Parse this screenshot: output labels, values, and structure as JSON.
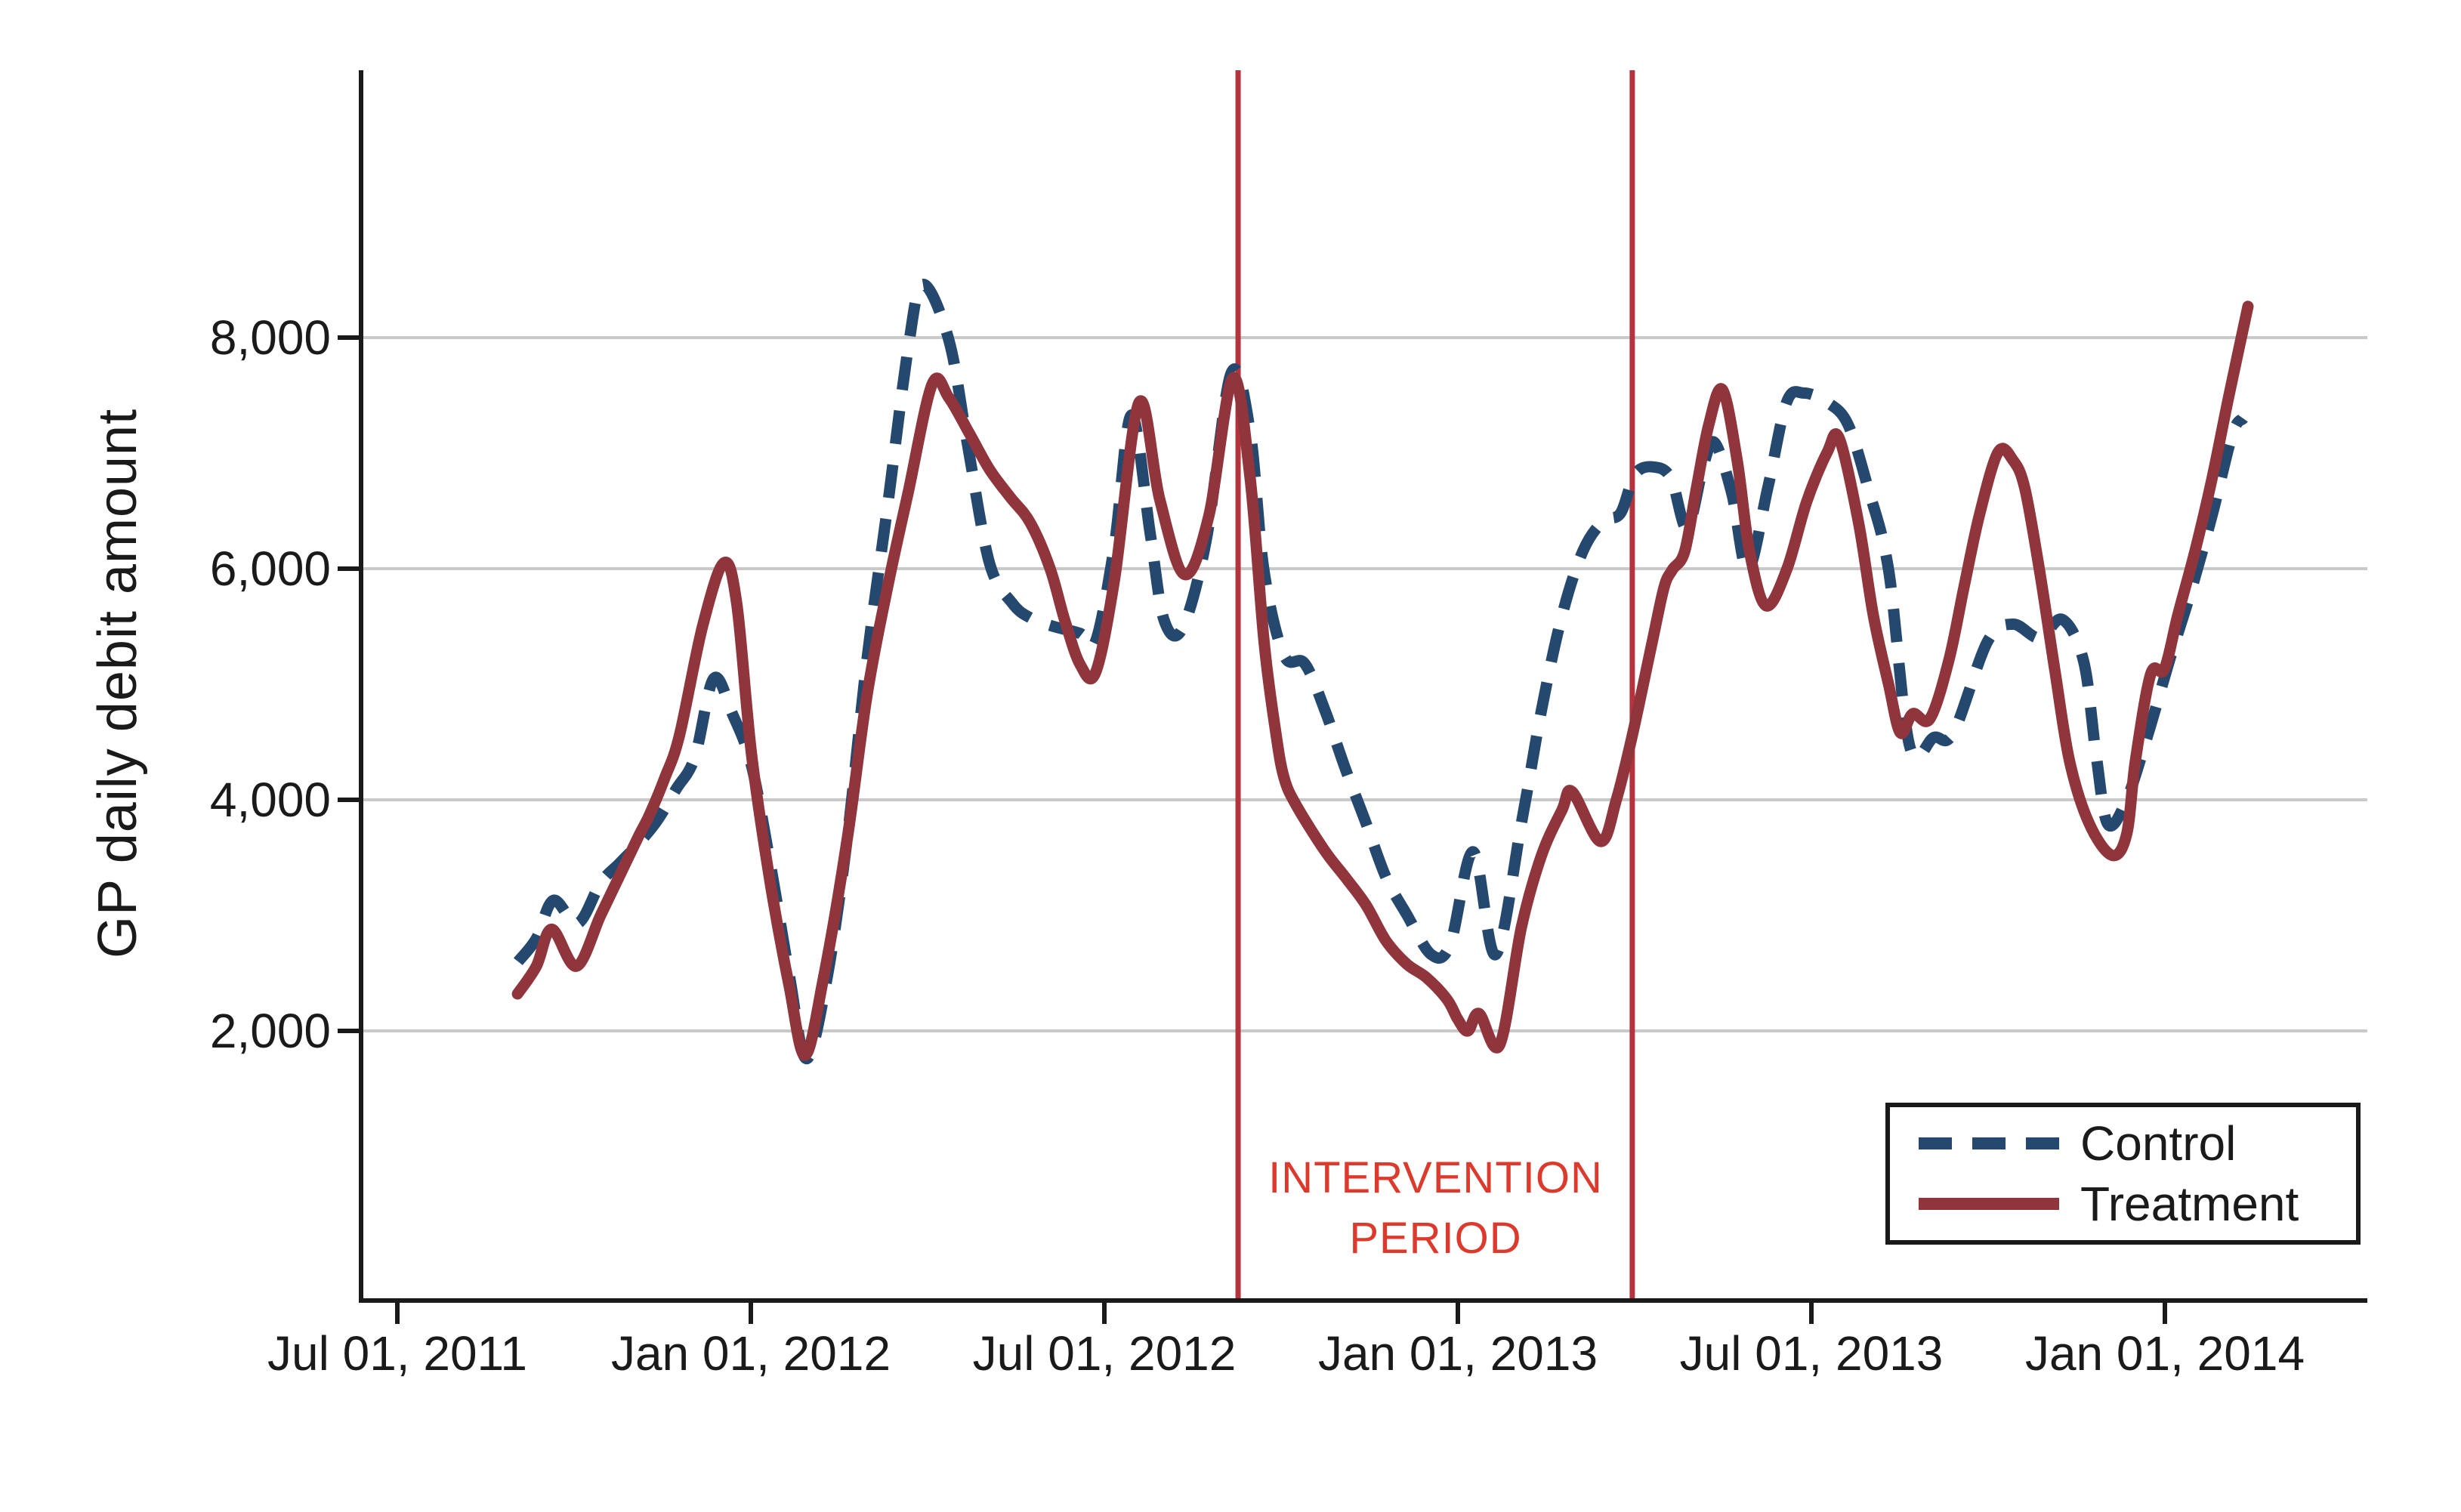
{
  "chart_data": {
    "type": "line",
    "title": "",
    "xlabel": "",
    "ylabel": "GP daily debit amount",
    "grid": true,
    "legend_position": "bottom-right",
    "x_unit": "months since Jul 01, 2011",
    "x_ticks": [
      {
        "t": 0,
        "label": "Jul 01, 2011"
      },
      {
        "t": 6,
        "label": "Jan 01, 2012"
      },
      {
        "t": 12,
        "label": "Jul 01, 2012"
      },
      {
        "t": 18,
        "label": "Jan 01, 2013"
      },
      {
        "t": 24,
        "label": "Jul 01, 2013"
      },
      {
        "t": 30,
        "label": "Jan 01, 2014"
      }
    ],
    "y_ticks": [
      {
        "v": 2000,
        "label": "2,000"
      },
      {
        "v": 4000,
        "label": "4,000"
      },
      {
        "v": 6000,
        "label": "6,000"
      },
      {
        "v": 8000,
        "label": "8,000"
      }
    ],
    "ylim_visible": [
      -330,
      10310
    ],
    "annotation": {
      "line1": "INTERVENTION",
      "line2": "PERIOD",
      "color": "#db3a2d"
    },
    "intervention_lines": {
      "color": "#b4333d",
      "t_values": [
        14.27,
        20.96
      ]
    },
    "colors": {
      "axis": "#1a1a1a",
      "grid": "#c9c9c9",
      "control": "#25496e",
      "treatment": "#90353b"
    },
    "series": [
      {
        "name": "Control",
        "dash": true,
        "color": "#25496e",
        "points": [
          [
            2.05,
            2600
          ],
          [
            2.36,
            2800
          ],
          [
            2.65,
            3130
          ],
          [
            3.06,
            2930
          ],
          [
            3.45,
            3280
          ],
          [
            3.77,
            3450
          ],
          [
            4.09,
            3620
          ],
          [
            4.41,
            3820
          ],
          [
            4.73,
            4090
          ],
          [
            5.05,
            4370
          ],
          [
            5.37,
            5050
          ],
          [
            5.69,
            4740
          ],
          [
            6.01,
            4300
          ],
          [
            6.33,
            3450
          ],
          [
            6.65,
            2490
          ],
          [
            6.94,
            1760
          ],
          [
            7.28,
            2420
          ],
          [
            7.63,
            3640
          ],
          [
            7.97,
            5210
          ],
          [
            8.32,
            6540
          ],
          [
            8.67,
            7910
          ],
          [
            8.92,
            8460
          ],
          [
            9.36,
            7980
          ],
          [
            9.68,
            7070
          ],
          [
            10.05,
            6050
          ],
          [
            10.44,
            5700
          ],
          [
            10.76,
            5570
          ],
          [
            11.14,
            5500
          ],
          [
            11.59,
            5440
          ],
          [
            11.85,
            5370
          ],
          [
            12.17,
            6200
          ],
          [
            12.46,
            7330
          ],
          [
            12.78,
            6300
          ],
          [
            13.01,
            5560
          ],
          [
            13.32,
            5480
          ],
          [
            13.73,
            6250
          ],
          [
            14.15,
            7690
          ],
          [
            14.47,
            7200
          ],
          [
            14.71,
            5980
          ],
          [
            15.05,
            5250
          ],
          [
            15.4,
            5180
          ],
          [
            15.74,
            4780
          ],
          [
            16.09,
            4270
          ],
          [
            16.44,
            3800
          ],
          [
            16.78,
            3330
          ],
          [
            17.13,
            3010
          ],
          [
            17.55,
            2660
          ],
          [
            17.87,
            2750
          ],
          [
            18.26,
            3550
          ],
          [
            18.64,
            2660
          ],
          [
            19.08,
            3800
          ],
          [
            19.42,
            4780
          ],
          [
            19.77,
            5600
          ],
          [
            20.12,
            6150
          ],
          [
            20.46,
            6410
          ],
          [
            20.76,
            6480
          ],
          [
            21.01,
            6820
          ],
          [
            21.33,
            6880
          ],
          [
            21.62,
            6780
          ],
          [
            21.89,
            6350
          ],
          [
            22.17,
            6900
          ],
          [
            22.36,
            7090
          ],
          [
            22.65,
            6650
          ],
          [
            22.92,
            5990
          ],
          [
            23.26,
            6700
          ],
          [
            23.58,
            7440
          ],
          [
            23.87,
            7520
          ],
          [
            24.27,
            7440
          ],
          [
            24.62,
            7250
          ],
          [
            24.96,
            6700
          ],
          [
            25.31,
            5990
          ],
          [
            25.67,
            4460
          ],
          [
            26.08,
            4540
          ],
          [
            26.41,
            4580
          ],
          [
            26.99,
            5370
          ],
          [
            27.42,
            5520
          ],
          [
            27.87,
            5400
          ],
          [
            28.26,
            5560
          ],
          [
            28.62,
            5200
          ],
          [
            28.83,
            4400
          ],
          [
            29.03,
            3790
          ],
          [
            29.35,
            4000
          ],
          [
            29.72,
            4580
          ],
          [
            30.08,
            5210
          ],
          [
            30.44,
            5800
          ],
          [
            30.8,
            6460
          ],
          [
            31.15,
            7170
          ],
          [
            31.33,
            7300
          ]
        ]
      },
      {
        "name": "Treatment",
        "dash": false,
        "color": "#90353b",
        "points": [
          [
            2.04,
            2320
          ],
          [
            2.36,
            2560
          ],
          [
            2.62,
            2880
          ],
          [
            3.04,
            2560
          ],
          [
            3.45,
            3000
          ],
          [
            3.77,
            3340
          ],
          [
            4.09,
            3680
          ],
          [
            4.28,
            3870
          ],
          [
            4.54,
            4190
          ],
          [
            4.79,
            4560
          ],
          [
            5.18,
            5500
          ],
          [
            5.54,
            6050
          ],
          [
            5.76,
            5700
          ],
          [
            6.01,
            4400
          ],
          [
            6.33,
            3280
          ],
          [
            6.65,
            2390
          ],
          [
            6.92,
            1790
          ],
          [
            7.23,
            2450
          ],
          [
            7.63,
            3640
          ],
          [
            7.97,
            4900
          ],
          [
            8.32,
            5840
          ],
          [
            8.67,
            6660
          ],
          [
            9.08,
            7600
          ],
          [
            9.36,
            7480
          ],
          [
            9.71,
            7170
          ],
          [
            10.05,
            6860
          ],
          [
            10.4,
            6620
          ],
          [
            10.74,
            6400
          ],
          [
            11.08,
            6000
          ],
          [
            11.33,
            5550
          ],
          [
            11.59,
            5170
          ],
          [
            11.85,
            5100
          ],
          [
            12.17,
            5900
          ],
          [
            12.59,
            7440
          ],
          [
            12.94,
            6600
          ],
          [
            13.36,
            5950
          ],
          [
            13.77,
            6450
          ],
          [
            14.18,
            7650
          ],
          [
            14.47,
            6800
          ],
          [
            14.71,
            5370
          ],
          [
            14.91,
            4580
          ],
          [
            15.05,
            4190
          ],
          [
            15.26,
            3950
          ],
          [
            15.74,
            3560
          ],
          [
            16.09,
            3330
          ],
          [
            16.44,
            3090
          ],
          [
            16.78,
            2780
          ],
          [
            17.13,
            2580
          ],
          [
            17.47,
            2460
          ],
          [
            17.82,
            2270
          ],
          [
            18.0,
            2100
          ],
          [
            18.17,
            2000
          ],
          [
            18.36,
            2150
          ],
          [
            18.71,
            1880
          ],
          [
            19.08,
            2900
          ],
          [
            19.42,
            3520
          ],
          [
            19.77,
            3915
          ],
          [
            19.94,
            4070
          ],
          [
            20.42,
            3640
          ],
          [
            20.69,
            4000
          ],
          [
            20.97,
            4580
          ],
          [
            21.3,
            5370
          ],
          [
            21.5,
            5840
          ],
          [
            21.64,
            5990
          ],
          [
            21.85,
            6150
          ],
          [
            22.05,
            6700
          ],
          [
            22.26,
            7250
          ],
          [
            22.49,
            7550
          ],
          [
            22.74,
            6940
          ],
          [
            22.95,
            6150
          ],
          [
            23.23,
            5680
          ],
          [
            23.58,
            5990
          ],
          [
            23.92,
            6580
          ],
          [
            24.27,
            7010
          ],
          [
            24.47,
            7130
          ],
          [
            24.8,
            6400
          ],
          [
            25.05,
            5600
          ],
          [
            25.31,
            5000
          ],
          [
            25.51,
            4580
          ],
          [
            25.72,
            4745
          ],
          [
            26.01,
            4700
          ],
          [
            26.33,
            5200
          ],
          [
            26.59,
            5840
          ],
          [
            26.85,
            6460
          ],
          [
            27.17,
            7010
          ],
          [
            27.42,
            6940
          ],
          [
            27.62,
            6700
          ],
          [
            27.87,
            5990
          ],
          [
            28.13,
            5130
          ],
          [
            28.38,
            4340
          ],
          [
            28.71,
            3800
          ],
          [
            29.1,
            3520
          ],
          [
            29.35,
            3700
          ],
          [
            29.5,
            4340
          ],
          [
            29.76,
            5090
          ],
          [
            29.99,
            5130
          ],
          [
            30.22,
            5600
          ],
          [
            30.51,
            6150
          ],
          [
            30.8,
            6780
          ],
          [
            31.08,
            7480
          ],
          [
            31.41,
            8270
          ]
        ]
      }
    ]
  }
}
